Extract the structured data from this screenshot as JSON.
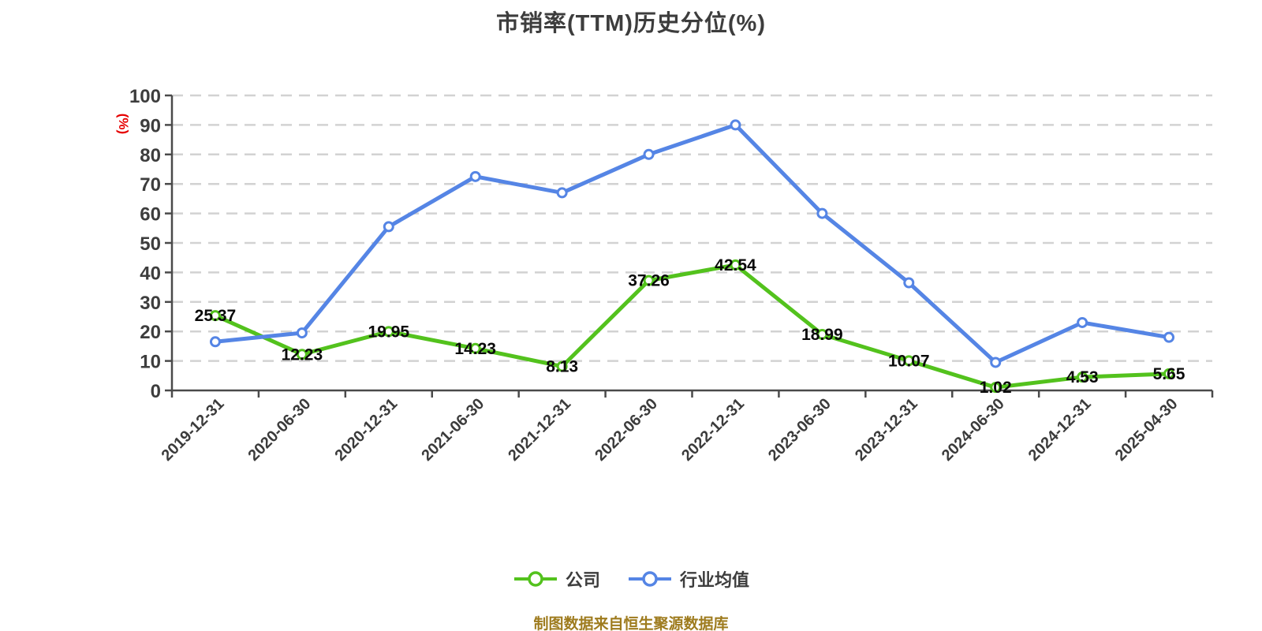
{
  "title": "市销率(TTM)历史分位(%)",
  "y_axis_unit": "(%)",
  "footer": "制图数据来自恒生聚源数据库",
  "colors": {
    "company_green": "#53c21d",
    "industry_blue": "#5585e5",
    "axis_gray": "#4a4a4a",
    "gridline_gray": "#d2d2d2",
    "title_gray": "#3d3d3d",
    "unit_red": "#e60000",
    "footer_gold": "#9e7b1e",
    "data_label_black": "#0a0a0a",
    "marker_fill": "#ffffff"
  },
  "legend": {
    "items": [
      {
        "label": "公司"
      },
      {
        "label": "行业均值"
      }
    ]
  },
  "chart_data": {
    "type": "line",
    "title": "市销率(TTM)历史分位(%)",
    "xlabel": "",
    "ylabel": "(%)",
    "ylim": [
      0,
      100
    ],
    "ytick_step": 10,
    "grid": "horizontal-dashed",
    "legend_position": "bottom",
    "categories": [
      "2019-12-31",
      "2020-06-30",
      "2020-12-31",
      "2021-06-30",
      "2021-12-31",
      "2022-06-30",
      "2022-12-31",
      "2023-06-30",
      "2023-12-31",
      "2024-06-30",
      "2024-12-31",
      "2025-04-30"
    ],
    "series": [
      {
        "name": "公司",
        "color": "#53c21d",
        "show_labels": true,
        "values": [
          25.37,
          12.23,
          19.95,
          14.23,
          8.13,
          37.26,
          42.54,
          18.99,
          10.07,
          1.02,
          4.53,
          5.65
        ]
      },
      {
        "name": "行业均值",
        "color": "#5585e5",
        "show_labels": false,
        "values_estimated": true,
        "values": [
          16.5,
          19.5,
          55.5,
          72.5,
          67,
          80,
          90,
          60,
          36.5,
          9.5,
          23,
          18
        ]
      }
    ]
  }
}
